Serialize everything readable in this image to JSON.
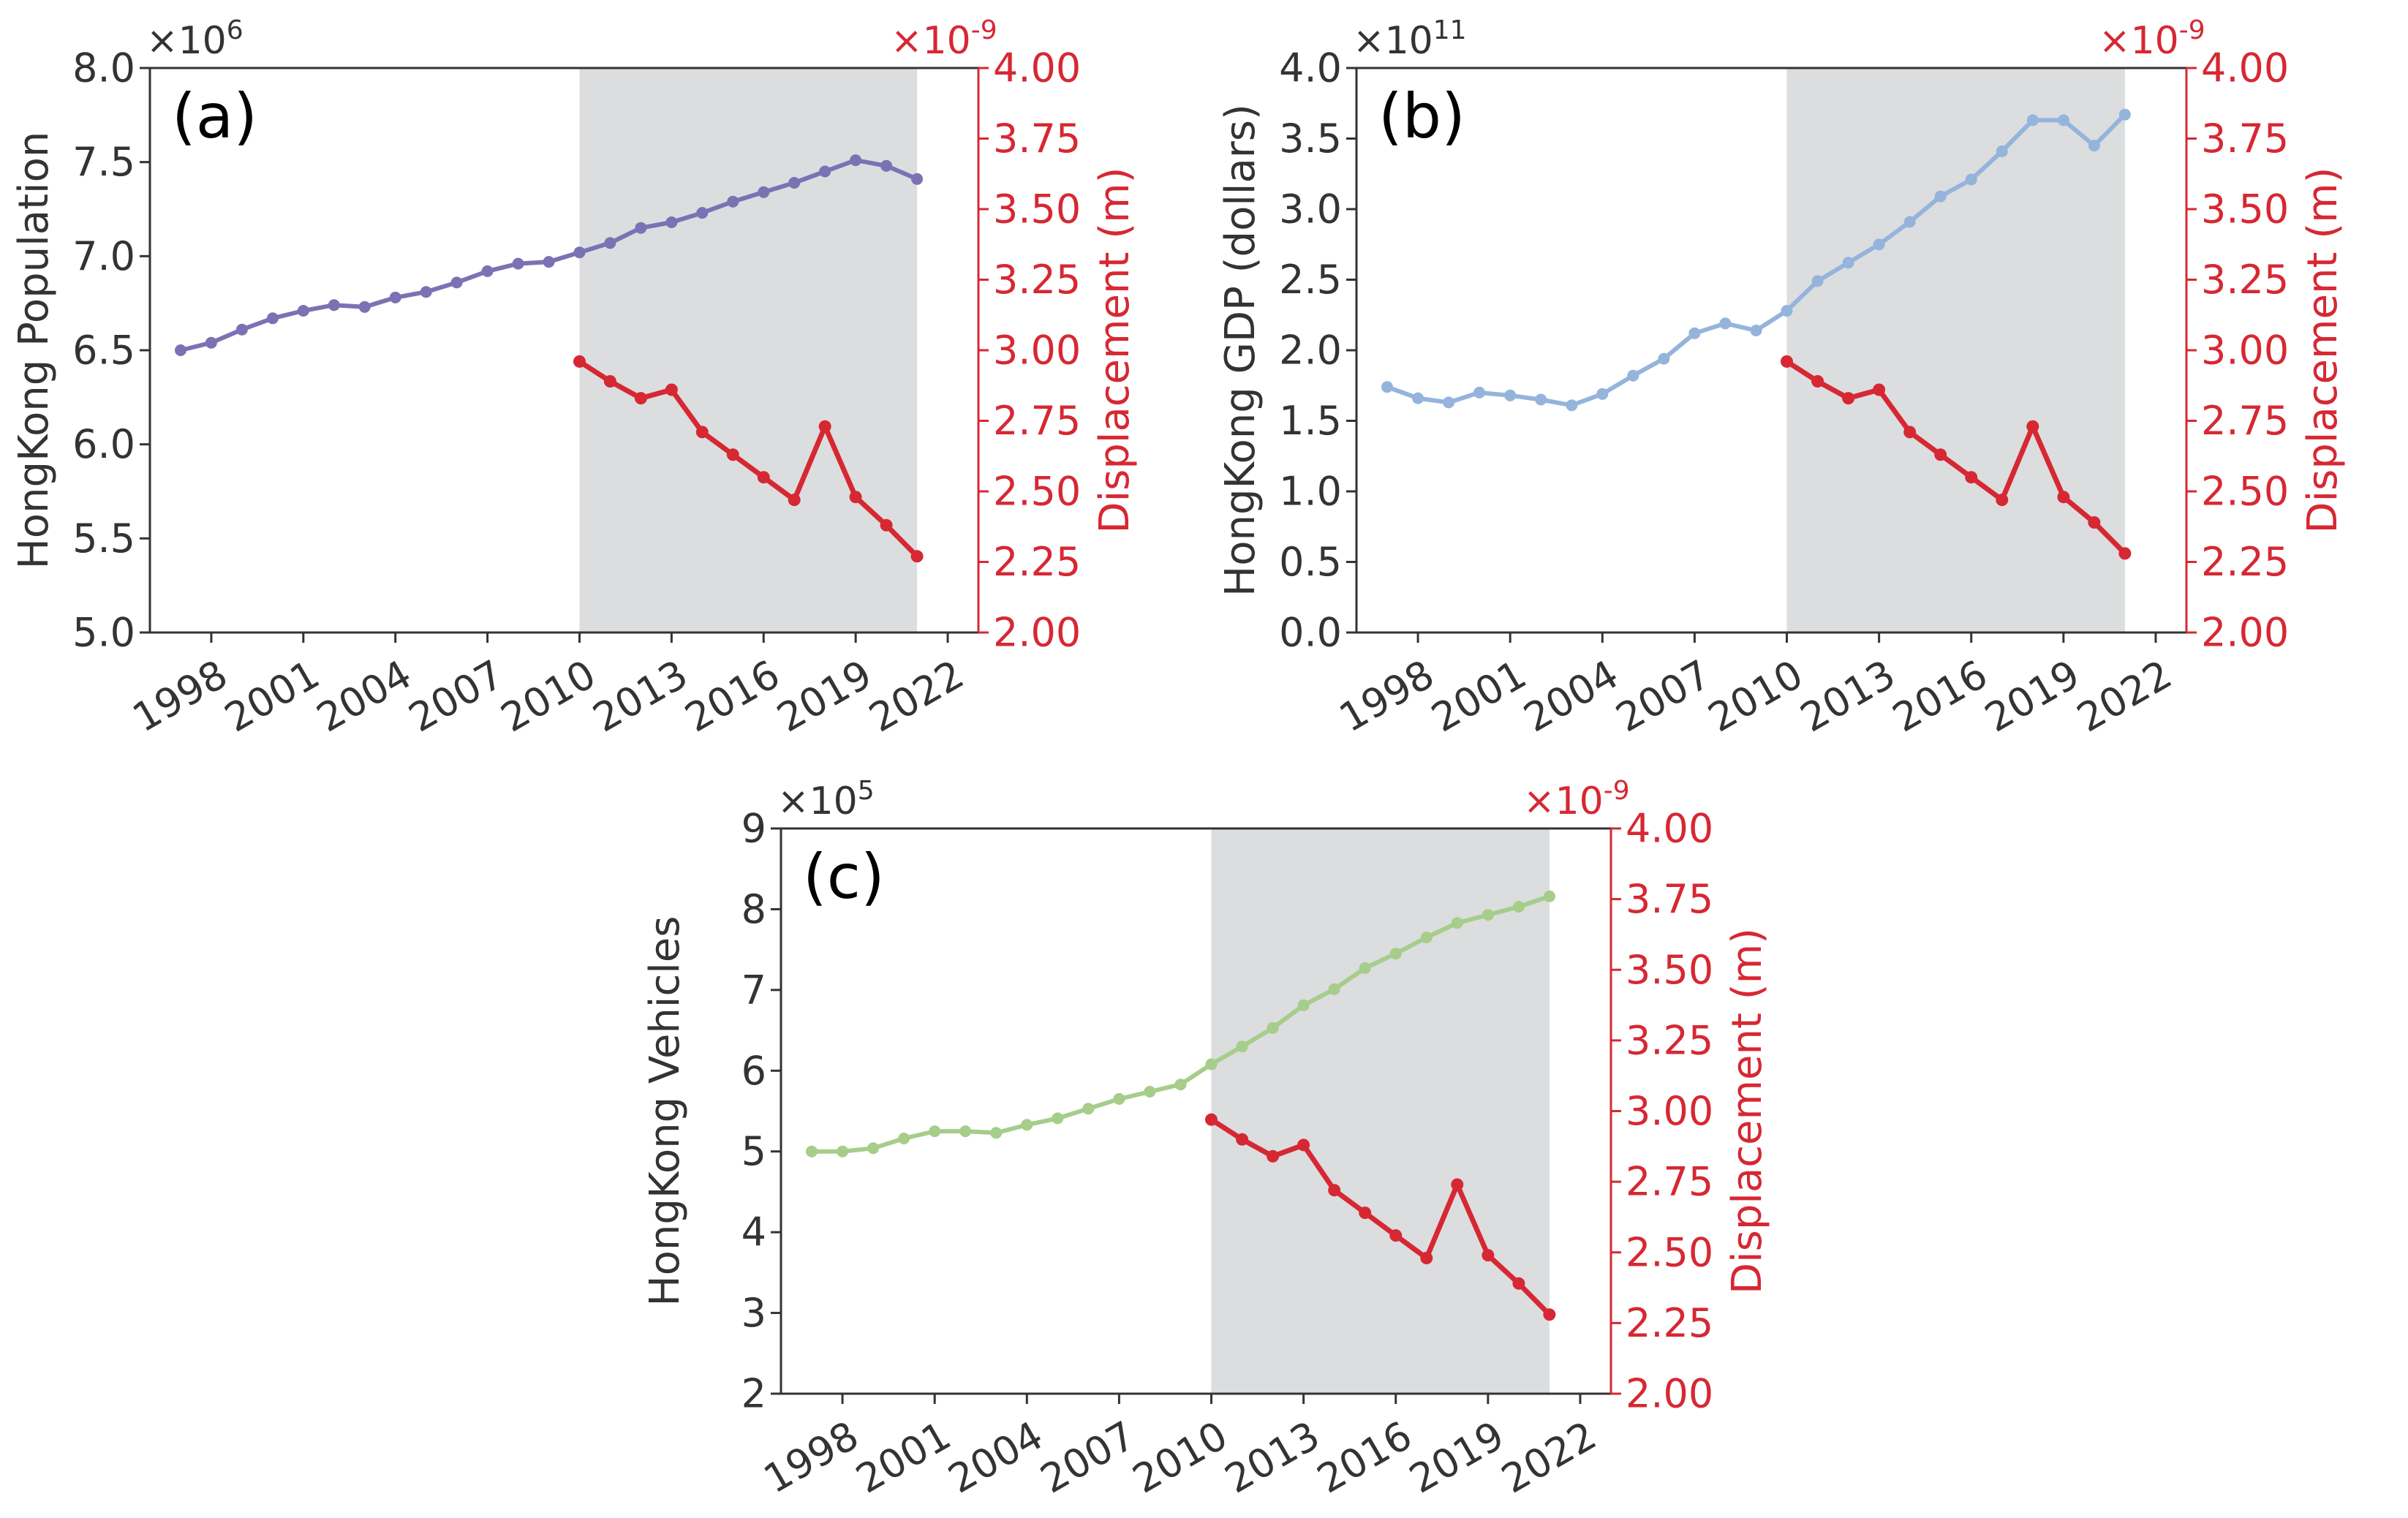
{
  "colors": {
    "displacement": "#d62833",
    "axis": "#333333",
    "shade": "#dcdddf",
    "population": "#7b72b3",
    "gdp": "#94b4dc",
    "vehicles": "#a6cd8a"
  },
  "chart_data": [
    {
      "type": "line",
      "panel_label": "(a)",
      "ylabel_left": "HongKong Population",
      "ylabel_right": "Displacement (m)",
      "left_multiplier": "×10",
      "left_multiplier_exp": "6",
      "right_multiplier": "×10",
      "right_multiplier_exp": "-9",
      "xlim": [
        1996,
        2023
      ],
      "ylim_left": [
        5.0,
        8.0
      ],
      "ylim_right": [
        2.0,
        4.0
      ],
      "shade_range": [
        2010,
        2021
      ],
      "x_ticks": [
        "1998",
        "2001",
        "2004",
        "2007",
        "2010",
        "2013",
        "2016",
        "2019",
        "2022"
      ],
      "y_ticks_left": [
        "5.0",
        "5.5",
        "6.0",
        "6.5",
        "7.0",
        "7.5",
        "8.0"
      ],
      "y_ticks_right": [
        "2.00",
        "2.25",
        "2.50",
        "2.75",
        "3.00",
        "3.25",
        "3.50",
        "3.75",
        "4.00"
      ],
      "series": [
        {
          "name": "HongKong Population",
          "axis": "left",
          "color_key": "population",
          "x": [
            1997,
            1998,
            1999,
            2000,
            2001,
            2002,
            2003,
            2004,
            2005,
            2006,
            2007,
            2008,
            2009,
            2010,
            2011,
            2012,
            2013,
            2014,
            2015,
            2016,
            2017,
            2018,
            2019,
            2020,
            2021
          ],
          "values": [
            6.5,
            6.54,
            6.61,
            6.67,
            6.71,
            6.74,
            6.73,
            6.78,
            6.81,
            6.86,
            6.92,
            6.96,
            6.97,
            7.02,
            7.07,
            7.15,
            7.18,
            7.23,
            7.29,
            7.34,
            7.39,
            7.45,
            7.51,
            7.48,
            7.41
          ]
        },
        {
          "name": "Displacement",
          "axis": "right",
          "color_key": "displacement",
          "x": [
            2010,
            2011,
            2012,
            2013,
            2014,
            2015,
            2016,
            2017,
            2018,
            2019,
            2020,
            2021
          ],
          "values": [
            2.96,
            2.89,
            2.83,
            2.86,
            2.71,
            2.63,
            2.55,
            2.47,
            2.73,
            2.48,
            2.38,
            2.27
          ]
        }
      ]
    },
    {
      "type": "line",
      "panel_label": "(b)",
      "ylabel_left": "HongKong GDP (dollars)",
      "ylabel_right": "Displacement (m)",
      "left_multiplier": "×10",
      "left_multiplier_exp": "11",
      "right_multiplier": "×10",
      "right_multiplier_exp": "-9",
      "xlim": [
        1996,
        2023
      ],
      "ylim_left": [
        0.0,
        4.0
      ],
      "ylim_right": [
        2.0,
        4.0
      ],
      "shade_range": [
        2010,
        2021
      ],
      "x_ticks": [
        "1998",
        "2001",
        "2004",
        "2007",
        "2010",
        "2013",
        "2016",
        "2019",
        "2022"
      ],
      "y_ticks_left": [
        "0.0",
        "0.5",
        "1.0",
        "1.5",
        "2.0",
        "2.5",
        "3.0",
        "3.5",
        "4.0"
      ],
      "y_ticks_right": [
        "2.00",
        "2.25",
        "2.50",
        "2.75",
        "3.00",
        "3.25",
        "3.50",
        "3.75",
        "4.00"
      ],
      "series": [
        {
          "name": "HongKong GDP",
          "axis": "left",
          "color_key": "gdp",
          "x": [
            1997,
            1998,
            1999,
            2000,
            2001,
            2002,
            2003,
            2004,
            2005,
            2006,
            2007,
            2008,
            2009,
            2010,
            2011,
            2012,
            2013,
            2014,
            2015,
            2016,
            2017,
            2018,
            2019,
            2020,
            2021
          ],
          "values": [
            1.74,
            1.66,
            1.63,
            1.7,
            1.68,
            1.65,
            1.61,
            1.69,
            1.82,
            1.94,
            2.12,
            2.19,
            2.14,
            2.28,
            2.49,
            2.62,
            2.75,
            2.91,
            3.09,
            3.21,
            3.41,
            3.63,
            3.63,
            3.45,
            3.67
          ]
        },
        {
          "name": "Displacement",
          "axis": "right",
          "color_key": "displacement",
          "x": [
            2010,
            2011,
            2012,
            2013,
            2014,
            2015,
            2016,
            2017,
            2018,
            2019,
            2020,
            2021
          ],
          "values": [
            2.96,
            2.89,
            2.83,
            2.86,
            2.71,
            2.63,
            2.55,
            2.47,
            2.73,
            2.48,
            2.39,
            2.28
          ]
        }
      ]
    },
    {
      "type": "line",
      "panel_label": "(c)",
      "ylabel_left": "HongKong Vehicles",
      "ylabel_right": "Displacement (m)",
      "left_multiplier": "×10",
      "left_multiplier_exp": "5",
      "right_multiplier": "×10",
      "right_multiplier_exp": "-9",
      "xlim": [
        1996,
        2023
      ],
      "ylim_left": [
        2,
        9
      ],
      "ylim_right": [
        2.0,
        4.0
      ],
      "shade_range": [
        2010,
        2021
      ],
      "x_ticks": [
        "1998",
        "2001",
        "2004",
        "2007",
        "2010",
        "2013",
        "2016",
        "2019",
        "2022"
      ],
      "y_ticks_left": [
        "2",
        "3",
        "4",
        "5",
        "6",
        "7",
        "8",
        "9"
      ],
      "y_ticks_right": [
        "2.00",
        "2.25",
        "2.50",
        "2.75",
        "3.00",
        "3.25",
        "3.50",
        "3.75",
        "4.00"
      ],
      "series": [
        {
          "name": "HongKong Vehicles",
          "axis": "left",
          "color_key": "vehicles",
          "x": [
            1997,
            1998,
            1999,
            2000,
            2001,
            2002,
            2003,
            2004,
            2005,
            2006,
            2007,
            2008,
            2009,
            2010,
            2011,
            2012,
            2013,
            2014,
            2015,
            2016,
            2017,
            2018,
            2019,
            2020,
            2021
          ],
          "values": [
            5.0,
            5.0,
            5.04,
            5.16,
            5.25,
            5.25,
            5.23,
            5.33,
            5.41,
            5.53,
            5.65,
            5.74,
            5.83,
            6.08,
            6.3,
            6.53,
            6.81,
            7.01,
            7.27,
            7.45,
            7.65,
            7.83,
            7.93,
            8.03,
            8.16
          ]
        },
        {
          "name": "Displacement",
          "axis": "right",
          "color_key": "displacement",
          "x": [
            2010,
            2011,
            2012,
            2013,
            2014,
            2015,
            2016,
            2017,
            2018,
            2019,
            2020,
            2021
          ],
          "values": [
            2.97,
            2.9,
            2.84,
            2.88,
            2.72,
            2.64,
            2.56,
            2.48,
            2.74,
            2.49,
            2.39,
            2.28
          ]
        }
      ]
    }
  ]
}
